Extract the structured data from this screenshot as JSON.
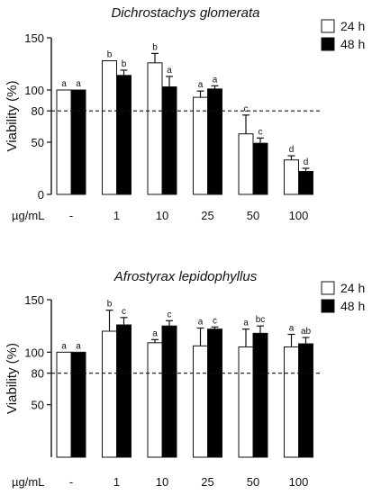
{
  "chart_data": [
    {
      "type": "bar",
      "title": "Dichrostachys glomerata",
      "ylabel": "Viability (%)",
      "xlabel": "µg/mL",
      "categories": [
        "-",
        "1",
        "10",
        "25",
        "50",
        "100"
      ],
      "ylim": [
        0,
        150
      ],
      "yticks": [
        0,
        50,
        80,
        100,
        150
      ],
      "reference_line": 80,
      "legend": "top-right",
      "series": [
        {
          "name": "24 h",
          "fill": "#ffffff",
          "values": [
            100,
            128,
            126,
            93,
            58,
            33
          ],
          "errors": [
            0,
            0,
            9,
            6,
            18,
            4
          ],
          "labels": [
            "a",
            "b",
            "b",
            "a",
            "c",
            "d"
          ]
        },
        {
          "name": "48 h",
          "fill": "#000000",
          "values": [
            100,
            114,
            103,
            101,
            49,
            22
          ],
          "errors": [
            0,
            5,
            10,
            3,
            5,
            3
          ],
          "labels": [
            "a",
            "b",
            "a",
            "a",
            "c",
            "d"
          ]
        }
      ]
    },
    {
      "type": "bar",
      "title": "Afrostyrax lepidophyllus",
      "ylabel": "Viability (%)",
      "xlabel": "µg/mL",
      "categories": [
        "-",
        "1",
        "10",
        "25",
        "50",
        "100"
      ],
      "ylim": [
        0,
        150
      ],
      "yticks": [
        50,
        80,
        100,
        150
      ],
      "reference_line": 80,
      "legend": "top-right",
      "series": [
        {
          "name": "24 h",
          "fill": "#ffffff",
          "values": [
            100,
            120,
            109,
            106,
            105,
            105
          ],
          "errors": [
            0,
            20,
            3,
            17,
            17,
            12
          ],
          "labels": [
            "a",
            "b",
            "a",
            "a",
            "a",
            "a"
          ]
        },
        {
          "name": "48 h",
          "fill": "#000000",
          "values": [
            100,
            126,
            125,
            122,
            118,
            108
          ],
          "errors": [
            0,
            7,
            5,
            2,
            7,
            6
          ],
          "labels": [
            "a",
            "c",
            "c",
            "c",
            "bc",
            "ab"
          ]
        }
      ]
    }
  ]
}
